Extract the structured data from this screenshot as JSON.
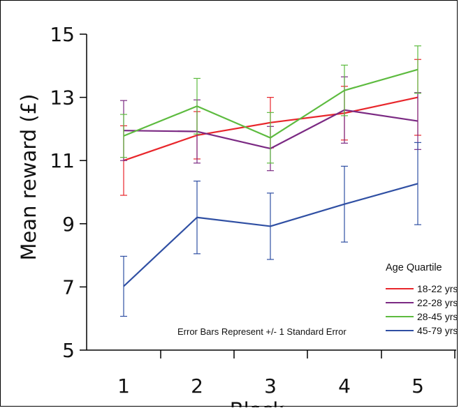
{
  "chart_data": {
    "type": "line",
    "title": "",
    "xlabel": "Block",
    "ylabel": "Mean reward (£)",
    "x": [
      1,
      2,
      3,
      4,
      5
    ],
    "x_tick_labels": [
      "1",
      "2",
      "3",
      "4",
      "5"
    ],
    "y_ticks": [
      5,
      7,
      9,
      11,
      13,
      15
    ],
    "y_tick_labels": [
      "5",
      "7",
      "9",
      "11",
      "13",
      "15"
    ],
    "ylim": [
      5,
      15
    ],
    "grid": false,
    "legend": {
      "title": "Age Quartile",
      "placement": "bottom-right"
    },
    "annotation": "Error Bars Represent +/- 1 Standard Error",
    "series": [
      {
        "name": "18-22 yrs",
        "color": "#e8262b",
        "values": [
          11.0,
          11.8,
          12.2,
          12.5,
          13.0
        ],
        "errors": [
          1.1,
          0.75,
          0.8,
          0.85,
          1.2
        ]
      },
      {
        "name": "22-28 yrs",
        "color": "#7b2a83",
        "values": [
          11.95,
          11.92,
          11.38,
          12.6,
          12.25
        ],
        "errors": [
          0.95,
          1.0,
          0.7,
          1.05,
          0.9
        ]
      },
      {
        "name": "28-45 yrs",
        "color": "#5dbb3f",
        "values": [
          11.78,
          12.72,
          11.72,
          13.22,
          13.88
        ],
        "errors": [
          0.68,
          0.88,
          0.8,
          0.8,
          0.75
        ]
      },
      {
        "name": "45-79 yrs",
        "color": "#2f4fa3",
        "values": [
          7.02,
          9.2,
          8.92,
          9.62,
          10.27
        ],
        "errors": [
          0.95,
          1.15,
          1.05,
          1.2,
          1.3
        ]
      }
    ]
  }
}
